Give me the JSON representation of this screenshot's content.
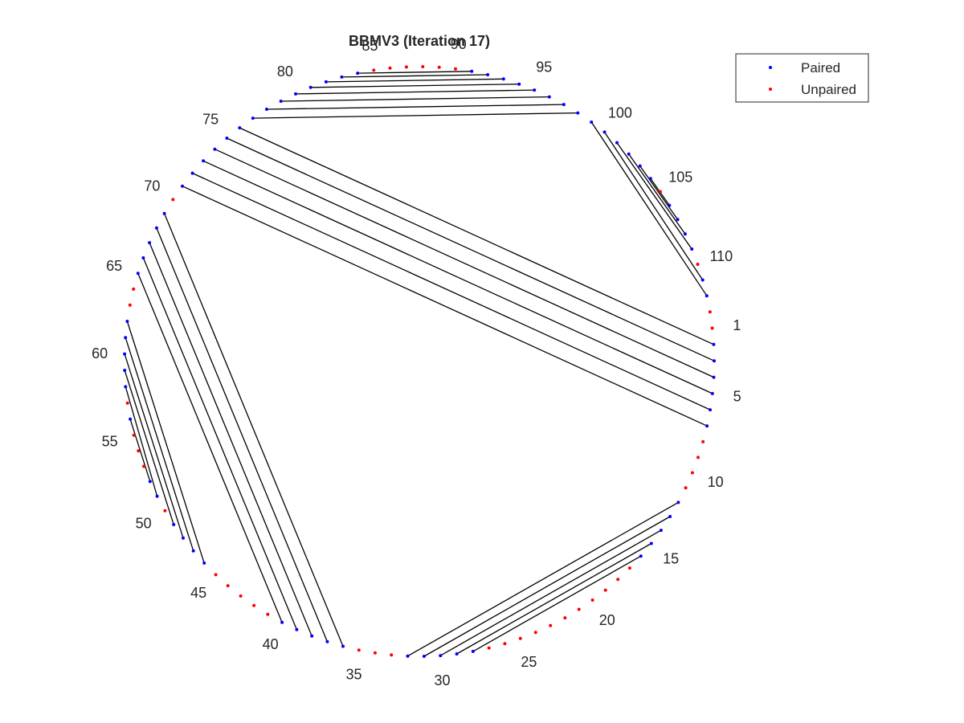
{
  "chart_data": {
    "type": "scatter",
    "title": "BBMV3 (Iteration 17)",
    "n_nodes": 113,
    "legend": {
      "placement": "top-right",
      "entries": [
        {
          "name": "Paired",
          "color": "#0000ff"
        },
        {
          "name": "Unpaired",
          "color": "#ff0000"
        }
      ]
    },
    "index_labels": [
      "1",
      "5",
      "10",
      "15",
      "20",
      "25",
      "30",
      "35",
      "40",
      "45",
      "50",
      "55",
      "60",
      "65",
      "70",
      "75",
      "80",
      "85",
      "90",
      "95",
      "100",
      "105",
      "110"
    ],
    "pairs": [
      [
        2,
        76
      ],
      [
        3,
        75
      ],
      [
        4,
        74
      ],
      [
        5,
        73
      ],
      [
        6,
        72
      ],
      [
        7,
        71
      ],
      [
        12,
        32
      ],
      [
        13,
        31
      ],
      [
        14,
        30
      ],
      [
        15,
        29
      ],
      [
        16,
        28
      ],
      [
        36,
        69
      ],
      [
        37,
        68
      ],
      [
        38,
        67
      ],
      [
        39,
        66
      ],
      [
        40,
        65
      ],
      [
        46,
        62
      ],
      [
        47,
        61
      ],
      [
        48,
        60
      ],
      [
        49,
        59
      ],
      [
        51,
        58
      ],
      [
        52,
        56
      ],
      [
        77,
        98
      ],
      [
        78,
        97
      ],
      [
        79,
        96
      ],
      [
        80,
        95
      ],
      [
        81,
        94
      ],
      [
        82,
        93
      ],
      [
        83,
        92
      ],
      [
        84,
        91
      ],
      [
        99,
        112
      ],
      [
        100,
        111
      ],
      [
        101,
        109
      ],
      [
        102,
        108
      ],
      [
        103,
        107
      ],
      [
        104,
        106
      ]
    ],
    "colors": {
      "paired": "#0000ff",
      "unpaired": "#ff0000",
      "link": "#000000"
    }
  }
}
